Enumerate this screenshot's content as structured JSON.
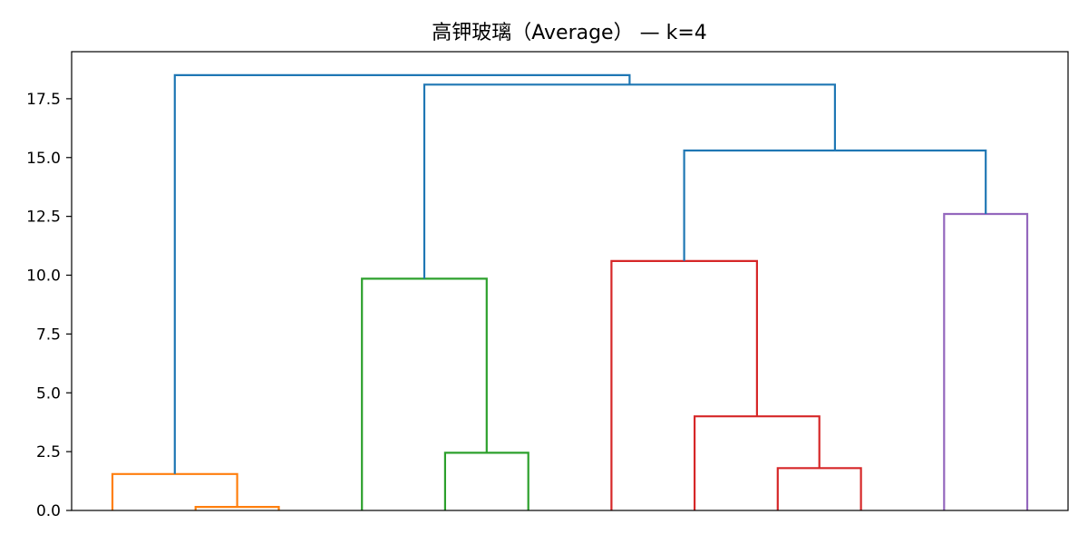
{
  "chart_data": {
    "type": "dendrogram",
    "title": "高钾玻璃（Average） — k=4",
    "xlabel": "",
    "ylabel": "",
    "ylim": [
      0,
      19.5
    ],
    "yticks": [
      0.0,
      2.5,
      5.0,
      7.5,
      10.0,
      12.5,
      15.0,
      17.5
    ],
    "ytick_labels": [
      "0.0",
      "2.5",
      "5.0",
      "7.5",
      "10.0",
      "12.5",
      "15.0",
      "17.5"
    ],
    "grid": false,
    "n_leaves": 12,
    "cluster_colors": {
      "orange": "#ff7f0e",
      "green": "#2ca02c",
      "red": "#d62728",
      "purple": "#9467bd",
      "link": "#1f77b4"
    },
    "links": [
      {
        "xs": [
          1,
          1,
          2,
          2
        ],
        "ys": [
          0.0,
          0.15,
          0.15,
          0.0
        ],
        "color": "#ff7f0e"
      },
      {
        "xs": [
          0,
          0,
          1.5,
          1.5
        ],
        "ys": [
          0.0,
          1.55,
          1.55,
          0.15
        ],
        "color": "#ff7f0e"
      },
      {
        "xs": [
          4,
          4,
          5,
          5
        ],
        "ys": [
          0.0,
          2.45,
          2.45,
          0.0
        ],
        "color": "#2ca02c"
      },
      {
        "xs": [
          3,
          3,
          4.5,
          4.5
        ],
        "ys": [
          0.0,
          9.85,
          9.85,
          2.45
        ],
        "color": "#2ca02c"
      },
      {
        "xs": [
          8,
          8,
          9,
          9
        ],
        "ys": [
          0.0,
          1.8,
          1.8,
          0.0
        ],
        "color": "#d62728"
      },
      {
        "xs": [
          7,
          7,
          8.5,
          8.5
        ],
        "ys": [
          0.0,
          4.0,
          4.0,
          1.8
        ],
        "color": "#d62728"
      },
      {
        "xs": [
          6,
          6,
          7.75,
          7.75
        ],
        "ys": [
          0.0,
          10.6,
          10.6,
          4.0
        ],
        "color": "#d62728"
      },
      {
        "xs": [
          10,
          10,
          11,
          11
        ],
        "ys": [
          0.0,
          12.6,
          12.6,
          0.0
        ],
        "color": "#9467bd"
      },
      {
        "xs": [
          6.875,
          6.875,
          10.5,
          10.5
        ],
        "ys": [
          10.6,
          15.3,
          15.3,
          12.6
        ],
        "color": "#1f77b4"
      },
      {
        "xs": [
          3.75,
          3.75,
          8.6875,
          8.6875
        ],
        "ys": [
          9.85,
          18.1,
          18.1,
          15.3
        ],
        "color": "#1f77b4"
      },
      {
        "xs": [
          0.75,
          0.75,
          6.21875,
          6.21875
        ],
        "ys": [
          1.55,
          18.5,
          18.5,
          18.1
        ],
        "color": "#1f77b4"
      }
    ]
  }
}
